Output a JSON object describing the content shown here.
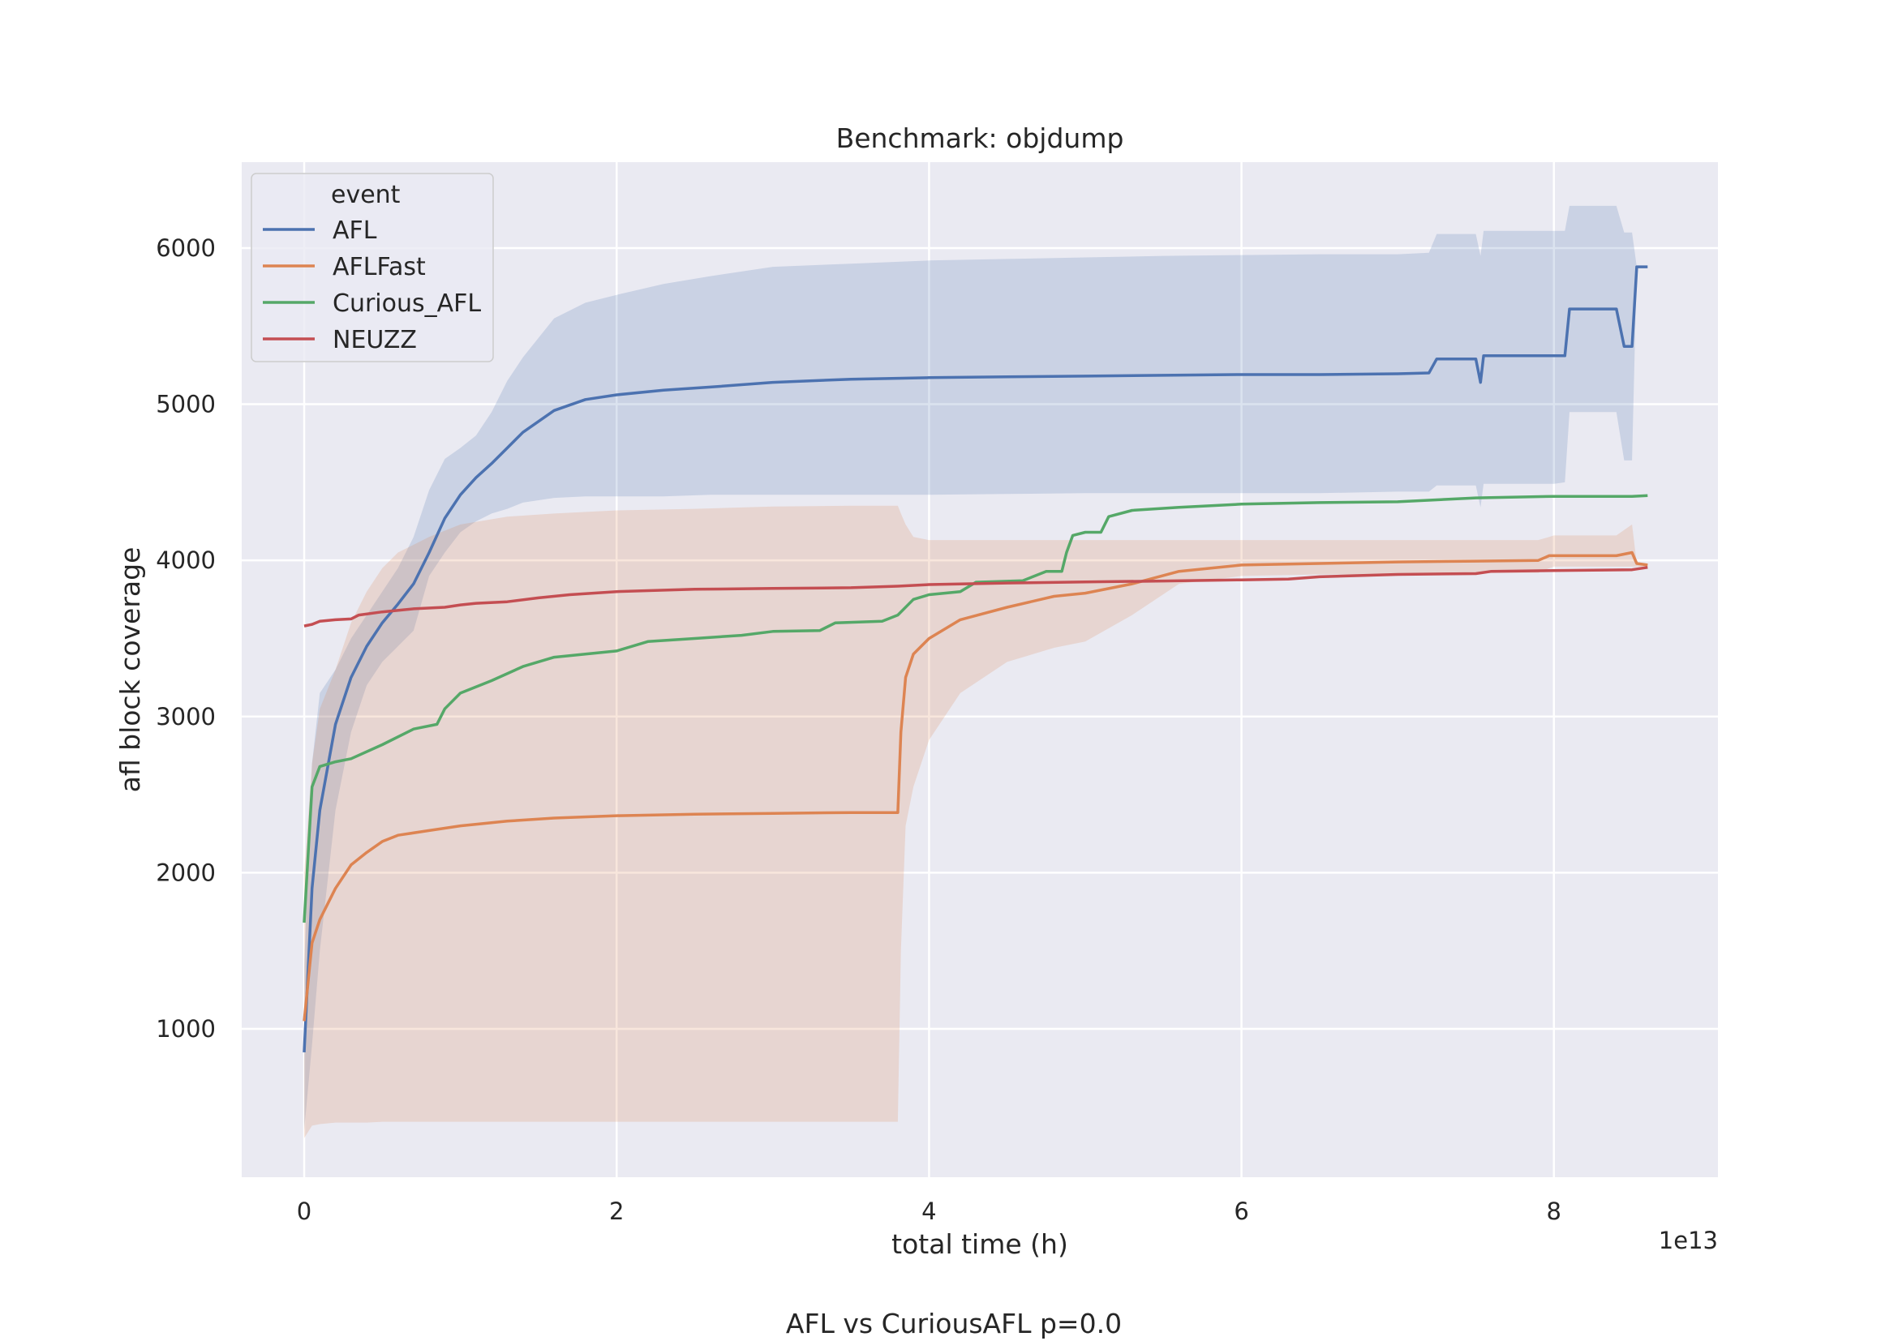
{
  "chart_data": {
    "type": "line",
    "title": "Benchmark: objdump",
    "xlabel": "total time (h)",
    "ylabel": "afl block coverage",
    "x_offset_label": "1e13",
    "xlim": [
      -0.4,
      9.05
    ],
    "ylim": [
      50,
      6550
    ],
    "x_ticks": [
      0,
      2,
      4,
      6,
      8
    ],
    "x_tick_labels": [
      "0",
      "2",
      "4",
      "6",
      "8"
    ],
    "y_ticks": [
      1000,
      2000,
      3000,
      4000,
      5000,
      6000
    ],
    "y_tick_labels": [
      "1000",
      "2000",
      "3000",
      "4000",
      "5000",
      "6000"
    ],
    "grid": true,
    "legend": {
      "title": "event",
      "position": "upper-left"
    },
    "footer": "AFL vs CuriousAFL p=0.0",
    "series": [
      {
        "name": "AFL",
        "color": "#4c72b0",
        "x": [
          0,
          0.05,
          0.1,
          0.2,
          0.3,
          0.4,
          0.5,
          0.6,
          0.7,
          0.8,
          0.9,
          1.0,
          1.1,
          1.2,
          1.3,
          1.4,
          1.6,
          1.8,
          2.0,
          2.3,
          2.6,
          3.0,
          3.5,
          4.0,
          4.5,
          5.0,
          5.5,
          6.0,
          6.5,
          7.0,
          7.2,
          7.25,
          7.5,
          7.53,
          7.55,
          8.0,
          8.07,
          8.1,
          8.4,
          8.45,
          8.5,
          8.53,
          8.6
        ],
        "y": [
          850,
          1900,
          2400,
          2950,
          3250,
          3450,
          3600,
          3720,
          3850,
          4050,
          4270,
          4420,
          4530,
          4620,
          4720,
          4820,
          4960,
          5030,
          5060,
          5090,
          5110,
          5140,
          5160,
          5170,
          5175,
          5180,
          5185,
          5190,
          5190,
          5195,
          5200,
          5290,
          5290,
          5140,
          5310,
          5310,
          5310,
          5610,
          5610,
          5370,
          5370,
          5880,
          5880
        ],
        "lower": [
          350,
          900,
          1500,
          2400,
          2900,
          3200,
          3350,
          3450,
          3550,
          3900,
          4050,
          4180,
          4250,
          4300,
          4330,
          4370,
          4400,
          4410,
          4410,
          4410,
          4420,
          4420,
          4420,
          4420,
          4425,
          4430,
          4430,
          4430,
          4430,
          4440,
          4440,
          4480,
          4480,
          4340,
          4490,
          4490,
          4500,
          4950,
          4950,
          4640,
          4640,
          5880,
          5880
        ],
        "upper": [
          1400,
          2700,
          3150,
          3300,
          3500,
          3650,
          3800,
          3950,
          4150,
          4450,
          4650,
          4720,
          4800,
          4950,
          5150,
          5300,
          5550,
          5650,
          5700,
          5770,
          5820,
          5880,
          5900,
          5920,
          5930,
          5940,
          5950,
          5955,
          5960,
          5960,
          5970,
          6090,
          6090,
          5950,
          6110,
          6110,
          6110,
          6270,
          6270,
          6100,
          6100,
          5880,
          5880
        ]
      },
      {
        "name": "AFLFast",
        "color": "#dd8452",
        "x": [
          0,
          0.05,
          0.1,
          0.2,
          0.3,
          0.4,
          0.5,
          0.6,
          0.8,
          1.0,
          1.3,
          1.6,
          2.0,
          2.5,
          3.0,
          3.5,
          3.8,
          3.82,
          3.85,
          3.9,
          4.0,
          4.2,
          4.5,
          4.8,
          5.0,
          5.3,
          5.6,
          6.0,
          6.5,
          7.0,
          7.5,
          7.9,
          7.97,
          8.0,
          8.4,
          8.5,
          8.53,
          8.6
        ],
        "y": [
          1050,
          1550,
          1700,
          1900,
          2050,
          2130,
          2200,
          2240,
          2270,
          2300,
          2330,
          2350,
          2365,
          2375,
          2380,
          2385,
          2385,
          2900,
          3250,
          3400,
          3500,
          3620,
          3700,
          3770,
          3790,
          3850,
          3930,
          3970,
          3980,
          3990,
          3995,
          4000,
          4030,
          4030,
          4030,
          4050,
          3980,
          3970
        ],
        "lower": [
          300,
          380,
          390,
          400,
          400,
          400,
          405,
          405,
          405,
          405,
          405,
          405,
          405,
          405,
          405,
          405,
          405,
          1500,
          2300,
          2550,
          2850,
          3150,
          3350,
          3440,
          3480,
          3650,
          3850,
          3900,
          3910,
          3910,
          3920,
          3920,
          3950,
          3960,
          3960,
          3960,
          3960,
          3960
        ],
        "upper": [
          2000,
          2700,
          3050,
          3300,
          3600,
          3800,
          3950,
          4050,
          4150,
          4230,
          4280,
          4300,
          4320,
          4330,
          4345,
          4350,
          4350,
          4300,
          4230,
          4150,
          4130,
          4130,
          4130,
          4130,
          4130,
          4130,
          4130,
          4130,
          4130,
          4130,
          4130,
          4130,
          4150,
          4160,
          4160,
          4230,
          3980,
          3980
        ]
      },
      {
        "name": "Curious_AFL",
        "color": "#55a868",
        "x": [
          0,
          0.05,
          0.1,
          0.2,
          0.3,
          0.5,
          0.7,
          0.85,
          0.9,
          1.0,
          1.2,
          1.4,
          1.6,
          2.0,
          2.2,
          2.5,
          2.8,
          3.0,
          3.3,
          3.4,
          3.7,
          3.8,
          3.9,
          4.0,
          4.2,
          4.3,
          4.6,
          4.75,
          4.85,
          4.88,
          4.92,
          5.0,
          5.1,
          5.15,
          5.3,
          5.6,
          6.0,
          6.5,
          7.0,
          7.5,
          8.0,
          8.5,
          8.6
        ],
        "y": [
          1680,
          2550,
          2680,
          2710,
          2730,
          2820,
          2920,
          2950,
          3050,
          3150,
          3230,
          3320,
          3380,
          3420,
          3480,
          3500,
          3520,
          3545,
          3550,
          3600,
          3610,
          3650,
          3750,
          3780,
          3800,
          3860,
          3870,
          3930,
          3930,
          4050,
          4160,
          4180,
          4180,
          4280,
          4320,
          4340,
          4360,
          4370,
          4375,
          4400,
          4410,
          4410,
          4415
        ],
        "lower": [
          1680,
          2550,
          2680,
          2710,
          2730,
          2820,
          2920,
          2950,
          3050,
          3150,
          3230,
          3320,
          3380,
          3420,
          3480,
          3500,
          3520,
          3545,
          3550,
          3600,
          3610,
          3650,
          3750,
          3780,
          3800,
          3860,
          3870,
          3930,
          3930,
          4050,
          4160,
          4180,
          4180,
          4280,
          4320,
          4340,
          4360,
          4370,
          4375,
          4400,
          4410,
          4410,
          4415
        ],
        "upper": [
          1680,
          2550,
          2680,
          2710,
          2730,
          2820,
          2920,
          2950,
          3050,
          3150,
          3230,
          3320,
          3380,
          3420,
          3480,
          3500,
          3520,
          3545,
          3550,
          3600,
          3610,
          3650,
          3750,
          3780,
          3800,
          3860,
          3870,
          3930,
          3930,
          4050,
          4160,
          4180,
          4180,
          4280,
          4320,
          4340,
          4360,
          4370,
          4375,
          4400,
          4410,
          4410,
          4415
        ]
      },
      {
        "name": "NEUZZ",
        "color": "#c44e52",
        "x": [
          0,
          0.05,
          0.1,
          0.2,
          0.3,
          0.35,
          0.5,
          0.7,
          0.9,
          1.0,
          1.1,
          1.3,
          1.5,
          1.7,
          2.0,
          2.5,
          3.0,
          3.5,
          3.8,
          4.0,
          4.5,
          5.0,
          5.5,
          6.0,
          6.3,
          6.5,
          7.0,
          7.5,
          7.6,
          8.0,
          8.5,
          8.6
        ],
        "y": [
          3580,
          3590,
          3610,
          3620,
          3625,
          3650,
          3670,
          3690,
          3700,
          3715,
          3725,
          3735,
          3760,
          3780,
          3800,
          3815,
          3820,
          3825,
          3835,
          3845,
          3855,
          3862,
          3868,
          3875,
          3880,
          3895,
          3910,
          3915,
          3930,
          3935,
          3940,
          3955
        ],
        "lower": [
          3580,
          3590,
          3610,
          3620,
          3625,
          3650,
          3670,
          3690,
          3700,
          3715,
          3725,
          3735,
          3760,
          3780,
          3800,
          3815,
          3820,
          3825,
          3835,
          3845,
          3855,
          3862,
          3868,
          3875,
          3880,
          3895,
          3910,
          3915,
          3930,
          3935,
          3940,
          3955
        ],
        "upper": [
          3580,
          3590,
          3610,
          3620,
          3625,
          3650,
          3670,
          3690,
          3700,
          3715,
          3725,
          3735,
          3760,
          3780,
          3800,
          3815,
          3820,
          3825,
          3835,
          3845,
          3855,
          3862,
          3868,
          3875,
          3880,
          3895,
          3910,
          3915,
          3930,
          3935,
          3940,
          3955
        ]
      }
    ]
  }
}
